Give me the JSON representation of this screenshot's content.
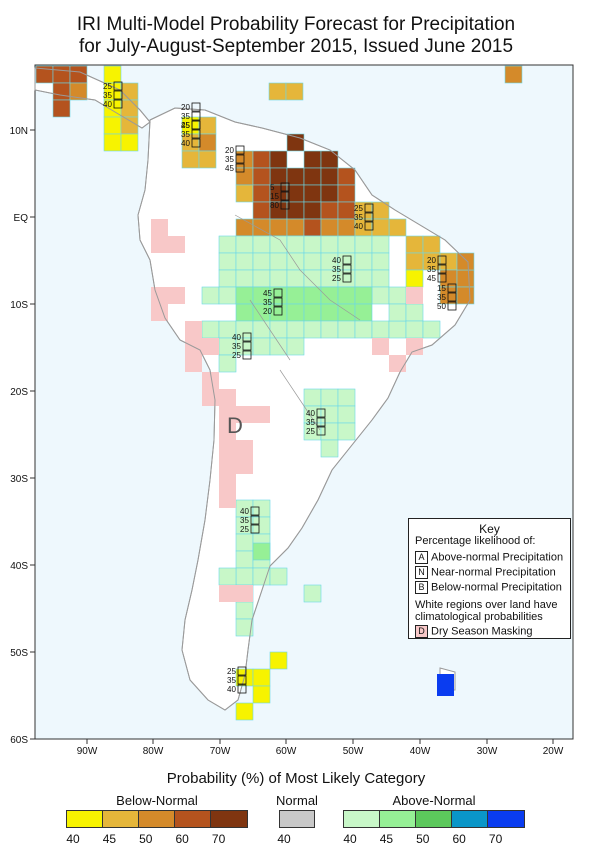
{
  "title": {
    "line1": "IRI Multi-Model Probability Forecast for Precipitation",
    "line2": "for July-August-September 2015, Issued June 2015"
  },
  "axes": {
    "lon_labels": [
      "90W",
      "80W",
      "70W",
      "60W",
      "50W",
      "40W",
      "30W",
      "20W"
    ],
    "lat_labels": [
      "10N",
      "EQ",
      "10S",
      "20S",
      "30S",
      "40S",
      "50S",
      "60S"
    ]
  },
  "colors": {
    "ocean": "#eef8fd",
    "land": "#ffffff",
    "coast": "#9a9a9a",
    "below": [
      "#f7f300",
      "#e5b63a",
      "#d48a2a",
      "#b4531e",
      "#7f3510"
    ],
    "normal": "#c8c8c8",
    "above": [
      "#c8f7c8",
      "#96f096",
      "#5cc85c",
      "#0a96c8",
      "#0a3cf0"
    ],
    "dry_mask": "#f8c8c8",
    "outline": "#6ad8e8"
  },
  "annotations": {
    "dry_season_letter": "D",
    "stacks": [
      {
        "id": "caribbean",
        "vals": [
          "25",
          "35",
          "40"
        ]
      },
      {
        "id": "panama",
        "vals": [
          "20",
          "35",
          "45"
        ]
      },
      {
        "id": "colombia-west",
        "vals": [
          "25",
          "35",
          "40"
        ]
      },
      {
        "id": "colombia",
        "vals": [
          "20",
          "35",
          "45"
        ]
      },
      {
        "id": "venezuela",
        "vals": [
          "5",
          "15",
          "80"
        ]
      },
      {
        "id": "guyana-coast",
        "vals": [
          "25",
          "35",
          "40"
        ]
      },
      {
        "id": "amazon-east",
        "vals": [
          "40",
          "35",
          "25"
        ]
      },
      {
        "id": "ne-brazil-1",
        "vals": [
          "20",
          "35",
          "45"
        ]
      },
      {
        "id": "ne-brazil-2",
        "vals": [
          "15",
          "35",
          "50"
        ]
      },
      {
        "id": "central-brazil",
        "vals": [
          "45",
          "35",
          "20"
        ]
      },
      {
        "id": "bolivia",
        "vals": [
          "40",
          "35",
          "25"
        ]
      },
      {
        "id": "paraguay",
        "vals": [
          "40",
          "35",
          "25"
        ]
      },
      {
        "id": "argentina-central",
        "vals": [
          "40",
          "35",
          "25"
        ]
      },
      {
        "id": "patagonia-south",
        "vals": [
          "25",
          "35",
          "40"
        ]
      }
    ]
  },
  "key": {
    "title": "Key",
    "subtitle": "Percentage likelihood of:",
    "rows": [
      {
        "letter": "A",
        "label": "Above-normal Precipitation"
      },
      {
        "letter": "N",
        "label": "Near-normal Precipitation"
      },
      {
        "letter": "B",
        "label": "Below-normal Precipitation"
      }
    ],
    "note": "White regions over land have climatological probabilities",
    "dry_letter": "D",
    "dry_label": "Dry Season Masking"
  },
  "colorbar": {
    "title": "Probability (%) of Most Likely Category",
    "below_label": "Below-Normal",
    "normal_label": "Normal",
    "above_label": "Above-Normal",
    "below_ticks": [
      "40",
      "45",
      "50",
      "60",
      "70"
    ],
    "normal_ticks": [
      "40"
    ],
    "above_ticks": [
      "40",
      "45",
      "50",
      "60",
      "70"
    ]
  }
}
